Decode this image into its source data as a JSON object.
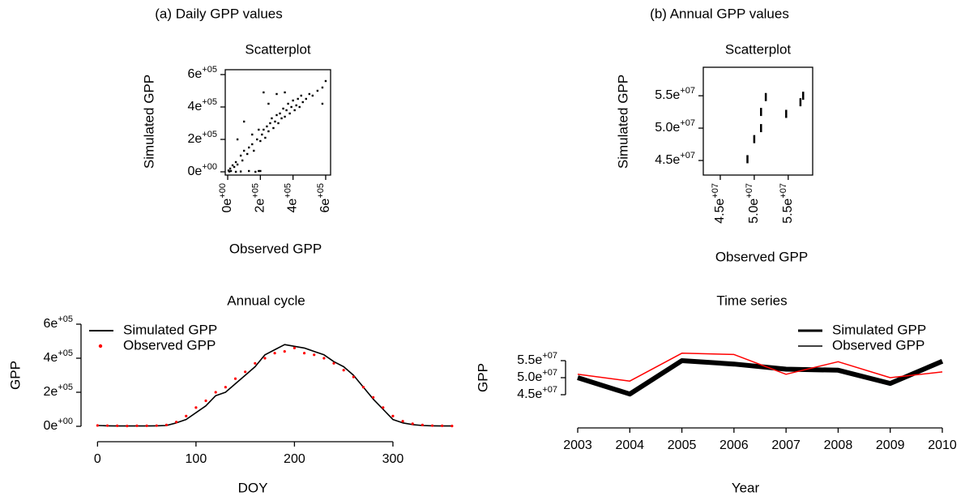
{
  "headings": [
    "(a) Daily GPP values",
    "(b) Annual GPP values"
  ],
  "chart_data": [
    {
      "type": "scatter",
      "title": "Scatterplot",
      "xlabel": "Observed GPP",
      "ylabel": "Simulated GPP",
      "color": "#000000",
      "x": [
        5000,
        10000,
        15000,
        20000,
        30000,
        40000,
        50000,
        60000,
        80000,
        90000,
        100000,
        120000,
        130000,
        150000,
        160000,
        180000,
        190000,
        200000,
        210000,
        220000,
        230000,
        240000,
        250000,
        260000,
        270000,
        280000,
        290000,
        300000,
        310000,
        320000,
        330000,
        340000,
        350000,
        360000,
        370000,
        380000,
        390000,
        400000,
        410000,
        420000,
        430000,
        440000,
        450000,
        460000,
        480000,
        500000,
        520000,
        550000,
        580000,
        600000,
        100000,
        150000,
        250000,
        60000,
        130000,
        50000,
        80000,
        190000,
        200000,
        170000,
        220000,
        300000,
        350000,
        580000
      ],
      "values": [
        8000,
        2000,
        20000,
        5000,
        40000,
        30000,
        60000,
        45000,
        100000,
        70000,
        130000,
        110000,
        150000,
        170000,
        130000,
        200000,
        260000,
        190000,
        230000,
        260000,
        210000,
        280000,
        250000,
        300000,
        330000,
        270000,
        310000,
        350000,
        300000,
        360000,
        330000,
        390000,
        340000,
        380000,
        420000,
        360000,
        400000,
        440000,
        380000,
        410000,
        450000,
        400000,
        470000,
        430000,
        450000,
        480000,
        470000,
        500000,
        520000,
        560000,
        310000,
        230000,
        420000,
        200000,
        5000,
        0,
        2000,
        5000,
        5000,
        0,
        490000,
        480000,
        490000,
        420000
      ],
      "xlim": [
        -15000,
        630000
      ],
      "ylim": [
        -20000,
        630000
      ],
      "xticks": [
        {
          "value": 0,
          "label": "0e+00"
        },
        {
          "value": 200000,
          "label": "2e+05"
        },
        {
          "value": 400000,
          "label": "4e+05"
        },
        {
          "value": 600000,
          "label": "6e+05"
        }
      ],
      "yticks": [
        {
          "value": 0,
          "label": "0e+00"
        },
        {
          "value": 200000,
          "label": "2e+05"
        },
        {
          "value": 400000,
          "label": "4e+05"
        },
        {
          "value": 600000,
          "label": "6e+05"
        }
      ]
    },
    {
      "type": "scatter",
      "title": "Scatterplot",
      "xlabel": "Observed GPP",
      "ylabel": "Simulated GPP",
      "color": "#000000",
      "x": [
        51000000,
        49000000,
        57200000,
        56800000,
        51000000,
        54700000,
        50000000,
        51700000
      ],
      "values": [
        50000000,
        45200000,
        55000000,
        54000000,
        52500000,
        52200000,
        48300000,
        54800000
      ],
      "xlim": [
        42500000,
        58600000
      ],
      "ylim": [
        42750000,
        59400000
      ],
      "xticks": [
        {
          "value": 45000000,
          "label": "4.5e+07"
        },
        {
          "value": 50000000,
          "label": "5.0e+07"
        },
        {
          "value": 55000000,
          "label": "5.5e+07"
        }
      ],
      "yticks": [
        {
          "value": 45000000,
          "label": "4.5e+07"
        },
        {
          "value": 50000000,
          "label": "5.0e+07"
        },
        {
          "value": 55000000,
          "label": "5.5e+07"
        }
      ]
    },
    {
      "type": "line",
      "title": "Annual cycle",
      "xlabel": "DOY",
      "ylabel": "GPP",
      "x": [
        0,
        10,
        20,
        30,
        40,
        50,
        60,
        70,
        80,
        90,
        100,
        110,
        120,
        130,
        140,
        150,
        160,
        170,
        180,
        190,
        200,
        210,
        220,
        230,
        240,
        250,
        260,
        270,
        280,
        290,
        300,
        310,
        320,
        330,
        340,
        350,
        360
      ],
      "series": [
        {
          "name": "Simulated GPP",
          "color": "#000000",
          "style": "line",
          "values": [
            5000,
            3000,
            2000,
            2000,
            2000,
            2000,
            3000,
            5000,
            20000,
            40000,
            80000,
            120000,
            180000,
            200000,
            250000,
            300000,
            350000,
            420000,
            450000,
            480000,
            470000,
            460000,
            440000,
            420000,
            380000,
            350000,
            300000,
            230000,
            160000,
            100000,
            40000,
            20000,
            10000,
            5000,
            3000,
            2000,
            2000
          ]
        },
        {
          "name": "Observed GPP",
          "color": "#ff0000",
          "style": "points",
          "values": [
            5000,
            4000,
            3000,
            2000,
            3000,
            3000,
            4000,
            8000,
            25000,
            60000,
            110000,
            150000,
            200000,
            230000,
            280000,
            320000,
            370000,
            400000,
            430000,
            440000,
            460000,
            430000,
            420000,
            400000,
            370000,
            330000,
            290000,
            230000,
            170000,
            110000,
            60000,
            30000,
            15000,
            8000,
            4000,
            3000,
            2000
          ]
        }
      ],
      "xlim": [
        -11,
        370
      ],
      "ylim": [
        -19000,
        619000
      ],
      "xticks": [
        0,
        100,
        200,
        300
      ],
      "yticks": [
        {
          "value": 0,
          "label": "0e+00"
        },
        {
          "value": 200000,
          "label": "2e+05"
        },
        {
          "value": 400000,
          "label": "4e+05"
        },
        {
          "value": 600000,
          "label": "6e+05"
        }
      ],
      "legend": "top-left"
    },
    {
      "type": "line",
      "title": "Time series",
      "xlabel": "Year",
      "ylabel": "GPP",
      "x": [
        2003,
        2004,
        2005,
        2006,
        2007,
        2008,
        2009,
        2010
      ],
      "series": [
        {
          "name": "Simulated GPP",
          "color": "#000000",
          "style": "line",
          "values": [
            50000000,
            45200000,
            55000000,
            54000000,
            52500000,
            52200000,
            48300000,
            54800000
          ]
        },
        {
          "name": "Observed GPP",
          "color": "#ff0000",
          "style": "line",
          "values": [
            51000000,
            49000000,
            57200000,
            56800000,
            51000000,
            54700000,
            50000000,
            51700000
          ]
        }
      ],
      "xlim": [
        2003,
        2010
      ],
      "ylim": [
        39050000,
        66190000
      ],
      "xticks": [
        2003,
        2004,
        2005,
        2006,
        2007,
        2008,
        2009,
        2010
      ],
      "yticks": [
        {
          "value": 45000000,
          "label": "4.5e+07"
        },
        {
          "value": 50000000,
          "label": "5.0e+07"
        },
        {
          "value": 55000000,
          "label": "5.5e+07"
        }
      ],
      "legend": "top-right"
    }
  ]
}
